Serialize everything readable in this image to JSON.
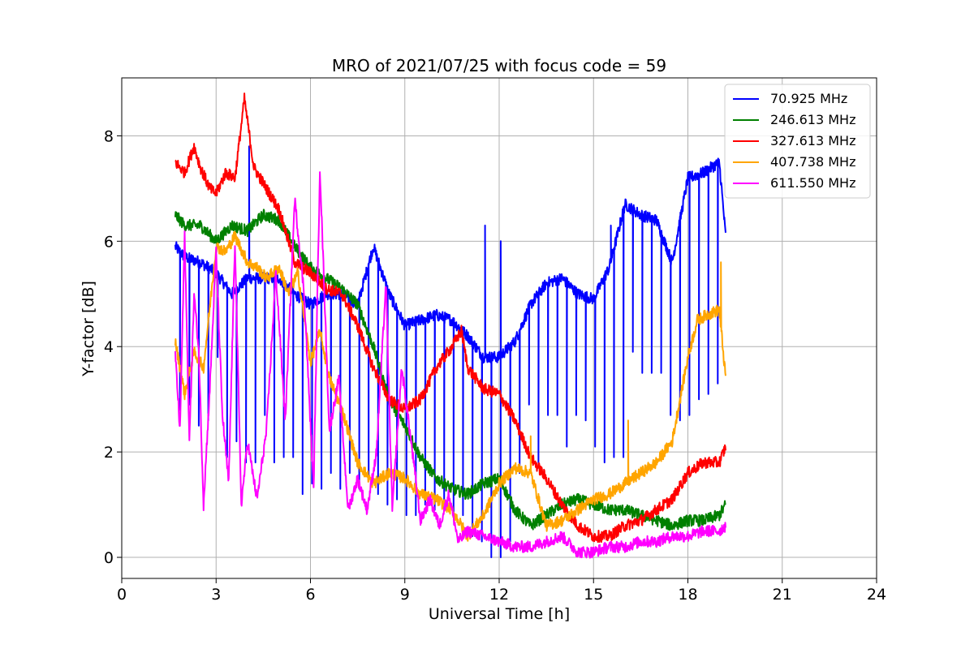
{
  "chart_data": {
    "type": "line",
    "title": "MRO of 2021/07/25 with focus code = 59",
    "xlabel": "Universal Time [h]",
    "ylabel": "Y-factor [dB]",
    "xlim": [
      0,
      24
    ],
    "ylim": [
      -0.4,
      9.1
    ],
    "xticks": [
      0,
      3,
      6,
      9,
      12,
      15,
      18,
      21,
      24
    ],
    "yticks": [
      0,
      2,
      4,
      6,
      8
    ],
    "grid": true,
    "legend_position": "top-right",
    "series": [
      {
        "name": " 70.925 MHz",
        "color": "#0000ff",
        "x": [
          1.7,
          2.0,
          2.5,
          3.0,
          3.5,
          4.0,
          4.5,
          5.0,
          5.5,
          6.0,
          6.5,
          7.0,
          7.5,
          8.0,
          8.5,
          9.0,
          9.5,
          10.0,
          10.5,
          11.0,
          11.5,
          12.0,
          12.5,
          13.0,
          13.5,
          14.0,
          14.5,
          15.0,
          15.5,
          16.0,
          16.5,
          17.0,
          17.5,
          18.0,
          18.5,
          19.0,
          19.2
        ],
        "values": [
          5.9,
          5.7,
          5.6,
          5.4,
          5.0,
          5.3,
          5.3,
          5.3,
          5.0,
          4.8,
          5.0,
          5.0,
          4.8,
          5.9,
          5.0,
          4.4,
          4.5,
          4.6,
          4.5,
          4.2,
          3.8,
          3.8,
          4.1,
          4.8,
          5.2,
          5.3,
          5.0,
          4.9,
          5.5,
          6.7,
          6.5,
          6.4,
          5.6,
          7.2,
          7.3,
          7.5,
          6.1
        ],
        "dips": [
          [
            1.85,
            2.8
          ],
          [
            2.15,
            2.9
          ],
          [
            2.45,
            2.5
          ],
          [
            2.75,
            2.6
          ],
          [
            3.05,
            3.8
          ],
          [
            3.35,
            1.9
          ],
          [
            3.65,
            2.2
          ],
          [
            3.95,
            1.8
          ],
          [
            4.25,
            1.8
          ],
          [
            4.55,
            2.7
          ],
          [
            4.85,
            1.8
          ],
          [
            5.15,
            1.9
          ],
          [
            5.45,
            1.9
          ],
          [
            5.75,
            1.2
          ],
          [
            6.05,
            1.4
          ],
          [
            6.35,
            1.3
          ],
          [
            6.65,
            1.6
          ],
          [
            6.95,
            1.3
          ],
          [
            7.25,
            1.6
          ],
          [
            7.55,
            1.3
          ],
          [
            7.85,
            1.5
          ],
          [
            8.15,
            1.2
          ],
          [
            8.45,
            1.0
          ],
          [
            8.75,
            1.1
          ],
          [
            9.05,
            0.8
          ],
          [
            9.35,
            0.8
          ],
          [
            9.65,
            1.0
          ],
          [
            9.95,
            0.9
          ],
          [
            10.25,
            0.9
          ],
          [
            10.55,
            0.8
          ],
          [
            10.85,
            0.8
          ],
          [
            11.15,
            0.4
          ],
          [
            11.45,
            0.3
          ],
          [
            11.75,
            0.0
          ],
          [
            12.05,
            0.0
          ],
          [
            12.35,
            0.3
          ],
          [
            12.65,
            1.6
          ],
          [
            12.95,
            2.9
          ],
          [
            13.25,
            1.8
          ],
          [
            13.55,
            2.7
          ],
          [
            13.85,
            2.7
          ],
          [
            14.15,
            2.1
          ],
          [
            14.45,
            2.7
          ],
          [
            14.75,
            2.6
          ],
          [
            15.05,
            2.1
          ],
          [
            15.35,
            1.8
          ],
          [
            15.65,
            1.9
          ],
          [
            15.95,
            1.9
          ],
          [
            16.25,
            3.9
          ],
          [
            16.55,
            3.5
          ],
          [
            16.85,
            3.5
          ],
          [
            17.15,
            3.5
          ],
          [
            17.45,
            2.7
          ],
          [
            17.75,
            2.6
          ],
          [
            18.05,
            2.7
          ],
          [
            18.35,
            3.0
          ],
          [
            18.65,
            3.1
          ],
          [
            18.95,
            3.3
          ]
        ],
        "spikes": [
          [
            4.05,
            7.8
          ],
          [
            11.55,
            6.3
          ],
          [
            12.05,
            6.0
          ],
          [
            15.55,
            6.3
          ]
        ]
      },
      {
        "name": " 246.613 MHz",
        "color": "#008000",
        "x": [
          1.7,
          2.0,
          2.5,
          3.0,
          3.5,
          4.0,
          4.5,
          5.0,
          5.5,
          6.0,
          6.5,
          7.0,
          7.5,
          8.0,
          8.5,
          9.0,
          9.5,
          10.0,
          10.5,
          11.0,
          11.5,
          12.0,
          12.5,
          13.0,
          13.5,
          14.0,
          14.5,
          15.0,
          15.5,
          16.0,
          16.5,
          17.0,
          17.5,
          18.0,
          18.5,
          19.0,
          19.2
        ],
        "values": [
          6.5,
          6.3,
          6.3,
          6.0,
          6.3,
          6.2,
          6.5,
          6.4,
          5.9,
          5.5,
          5.3,
          5.1,
          4.8,
          4.0,
          3.0,
          2.5,
          1.9,
          1.5,
          1.3,
          1.2,
          1.4,
          1.5,
          0.9,
          0.6,
          0.8,
          1.0,
          1.1,
          1.0,
          0.9,
          0.9,
          0.8,
          0.7,
          0.6,
          0.7,
          0.7,
          0.8,
          1.0
        ],
        "dips": [],
        "spikes": []
      },
      {
        "name": " 327.613 MHz",
        "color": "#ff0000",
        "x": [
          1.7,
          2.0,
          2.3,
          2.5,
          2.8,
          3.0,
          3.3,
          3.6,
          3.9,
          4.2,
          4.5,
          5.0,
          5.5,
          6.0,
          6.5,
          7.0,
          7.5,
          8.0,
          8.5,
          9.0,
          9.5,
          10.0,
          10.5,
          10.8,
          11.0,
          11.5,
          12.0,
          12.5,
          13.0,
          13.5,
          14.0,
          14.5,
          15.0,
          15.5,
          16.0,
          16.5,
          17.0,
          17.5,
          18.0,
          18.5,
          19.0,
          19.2
        ],
        "values": [
          7.5,
          7.3,
          7.8,
          7.4,
          7.0,
          6.9,
          7.3,
          7.2,
          8.7,
          7.4,
          7.1,
          6.6,
          5.6,
          5.4,
          5.1,
          5.0,
          4.4,
          3.6,
          3.0,
          2.8,
          3.0,
          3.6,
          4.0,
          4.3,
          3.6,
          3.2,
          3.1,
          2.6,
          1.9,
          1.5,
          1.0,
          0.6,
          0.4,
          0.4,
          0.6,
          0.7,
          0.9,
          1.1,
          1.6,
          1.8,
          1.8,
          2.1
        ],
        "dips": [],
        "spikes": []
      },
      {
        "name": " 407.738 MHz",
        "color": "#ffa500",
        "x": [
          1.7,
          2.0,
          2.3,
          2.6,
          3.0,
          3.3,
          3.6,
          4.0,
          4.3,
          4.6,
          5.0,
          5.3,
          5.6,
          6.0,
          6.3,
          6.6,
          7.0,
          7.5,
          8.0,
          8.5,
          9.0,
          9.5,
          10.0,
          10.5,
          11.0,
          11.5,
          12.0,
          12.5,
          13.0,
          13.5,
          14.0,
          14.5,
          15.0,
          15.5,
          16.0,
          16.5,
          17.0,
          17.5,
          18.0,
          18.3,
          18.6,
          19.0,
          19.2
        ],
        "values": [
          4.1,
          3.1,
          3.9,
          3.6,
          5.9,
          5.8,
          6.1,
          5.6,
          5.5,
          5.3,
          5.5,
          5.0,
          5.4,
          3.7,
          4.3,
          3.4,
          2.8,
          1.8,
          1.4,
          1.6,
          1.5,
          1.2,
          1.1,
          0.9,
          0.4,
          0.8,
          1.4,
          1.7,
          1.6,
          0.6,
          0.7,
          0.9,
          1.1,
          1.2,
          1.4,
          1.6,
          1.8,
          2.2,
          3.8,
          4.5,
          4.6,
          4.7,
          3.4
        ],
        "dips": [],
        "spikes": [
          [
            16.1,
            2.6
          ],
          [
            13.0,
            2.3
          ],
          [
            19.05,
            5.6
          ]
        ]
      },
      {
        "name": " 611.550 MHz",
        "color": "#ff00ff",
        "x": [
          1.7,
          1.85,
          2.0,
          2.15,
          2.3,
          2.45,
          2.6,
          2.8,
          3.0,
          3.2,
          3.4,
          3.6,
          3.8,
          4.0,
          4.3,
          4.6,
          4.9,
          5.2,
          5.5,
          5.8,
          6.1,
          6.3,
          6.6,
          6.9,
          7.2,
          7.5,
          7.8,
          8.1,
          8.4,
          8.6,
          8.9,
          9.2,
          9.5,
          9.8,
          10.1,
          10.4,
          10.7,
          11.0,
          11.5,
          12.0,
          12.5,
          13.0,
          13.5,
          14.0,
          14.5,
          15.0,
          15.5,
          16.0,
          16.5,
          17.0,
          17.5,
          18.0,
          18.5,
          19.0,
          19.2
        ],
        "values": [
          3.9,
          2.4,
          6.1,
          2.2,
          5.0,
          3.9,
          1.0,
          3.2,
          5.8,
          2.7,
          1.4,
          6.0,
          1.0,
          2.2,
          1.1,
          2.4,
          5.4,
          2.6,
          6.8,
          5.0,
          1.3,
          7.4,
          2.4,
          3.4,
          0.9,
          1.5,
          0.9,
          2.0,
          5.2,
          0.9,
          3.6,
          2.2,
          0.7,
          1.1,
          0.6,
          1.2,
          0.3,
          0.5,
          0.4,
          0.3,
          0.2,
          0.2,
          0.3,
          0.4,
          0.1,
          0.1,
          0.2,
          0.2,
          0.3,
          0.3,
          0.4,
          0.4,
          0.5,
          0.5,
          0.6
        ],
        "dips": [],
        "spikes": []
      }
    ]
  }
}
